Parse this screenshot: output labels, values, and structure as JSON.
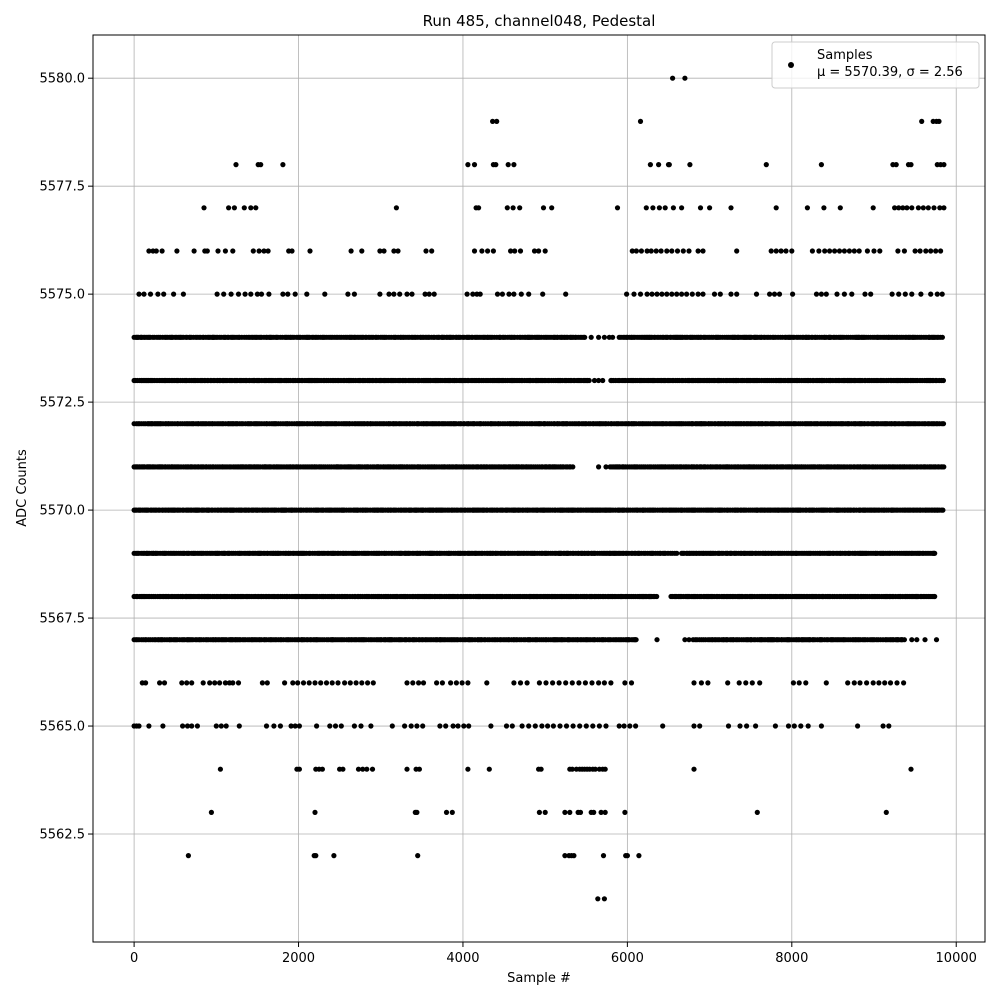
{
  "chart_data": {
    "type": "scatter",
    "title": "Run 485, channel048, Pedestal",
    "xlabel": "Sample #",
    "ylabel": "ADC Counts",
    "xlim": [
      -500,
      10350
    ],
    "ylim": [
      5560.0,
      5581.0
    ],
    "xticks": [
      0,
      2000,
      4000,
      6000,
      8000,
      10000
    ],
    "xtick_labels": [
      "0",
      "2000",
      "4000",
      "6000",
      "8000",
      "10000"
    ],
    "yticks": [
      5562.5,
      5565.0,
      5567.5,
      5570.0,
      5572.5,
      5575.0,
      5577.5,
      5580.0
    ],
    "ytick_labels": [
      "5562.5",
      "5565.0",
      "5567.5",
      "5570.0",
      "5572.5",
      "5575.0",
      "5577.5",
      "5580.0"
    ],
    "grid": true,
    "legend_position": "top-right",
    "series": [
      {
        "name": "Samples",
        "color": "#000000",
        "x_range": [
          0,
          9850
        ],
        "level_points": [
          {
            "level": 5561,
            "x": [
              5640,
              5720
            ]
          },
          {
            "level": 5562,
            "x": [
              660,
              2190,
              2210,
              2430,
              3450,
              5240,
              5290,
              5320,
              5350,
              5710,
              5980,
              6000,
              6140
            ]
          },
          {
            "level": 5563,
            "x": [
              940,
              2200,
              3420,
              3440,
              3800,
              3870,
              4930,
              5000,
              5240,
              5300,
              5400,
              5430,
              5560,
              5590,
              5680,
              5730,
              5970,
              7580,
              9150
            ]
          },
          {
            "level": 5564,
            "x": [
              1050,
              1980,
              2010,
              2210,
              2250,
              2290,
              2500,
              2540,
              2730,
              2780,
              2830,
              2900,
              3320,
              3430,
              3470,
              4060,
              4320,
              4920,
              4950,
              5300,
              5330,
              5380,
              5420,
              5450,
              5480,
              5510,
              5540,
              5580,
              5610,
              5660,
              5700,
              5730,
              6810,
              9450
            ]
          },
          {
            "level": 5565,
            "x": [
              0,
              30,
              60,
              180,
              350,
              590,
              650,
              700,
              770,
              1000,
              1060,
              1120,
              1280,
              1610,
              1700,
              1780,
              1910,
              1960,
              2010,
              2220,
              2380,
              2450,
              2520,
              2680,
              2760,
              2880,
              3140,
              3290,
              3370,
              3440,
              3510,
              3720,
              3790,
              3880,
              3940,
              4010,
              4070,
              4340,
              4530,
              4600,
              4720,
              4800,
              4880,
              4960,
              5030,
              5100,
              5180,
              5260,
              5340,
              5420,
              5500,
              5580,
              5660,
              5740,
              5900,
              5960,
              6030,
              6100,
              6430,
              6810,
              6880,
              7230,
              7370,
              7450,
              7560,
              7800,
              7960,
              8030,
              8110,
              8200,
              8360,
              8800,
              9110,
              9180
            ]
          },
          {
            "level": 5566,
            "x": [
              100,
              140,
              310,
              370,
              580,
              640,
              700,
              840,
              920,
              980,
              1040,
              1110,
              1160,
              1200,
              1270,
              1560,
              1620,
              1830,
              1930,
              1990,
              2060,
              2130,
              2200,
              2270,
              2340,
              2410,
              2480,
              2560,
              2630,
              2700,
              2770,
              2840,
              2910,
              3320,
              3390,
              3460,
              3520,
              3680,
              3750,
              3850,
              3920,
              3990,
              4060,
              4290,
              4620,
              4700,
              4780,
              4930,
              5010,
              5090,
              5170,
              5250,
              5330,
              5410,
              5490,
              5570,
              5650,
              5720,
              5800,
              5970,
              6050,
              6810,
              6900,
              6980,
              7220,
              7360,
              7440,
              7520,
              7610,
              8020,
              8090,
              8170,
              8420,
              8680,
              8760,
              8830,
              8910,
              8990,
              9060,
              9130,
              9200,
              9280,
              9360
            ]
          },
          {
            "level": 5567,
            "x_start": 0,
            "x_end": 6130,
            "extra": [
              6360,
              6700,
              6750
            ],
            "x_start2": 6800,
            "x_end2": 9380,
            "extra2": [
              9460,
              9520,
              9620,
              9760
            ]
          },
          {
            "level": 5568,
            "x_start": 0,
            "x_end": 6360,
            "x_start2": 6530,
            "x_end2": 9750
          },
          {
            "level": 5569,
            "x_start": 0,
            "x_end": 6620,
            "x_start2": 6660,
            "x_end2": 9750
          },
          {
            "level": 5570,
            "x_start": 0,
            "x_end": 9850
          },
          {
            "level": 5571,
            "x_start": 0,
            "x_end": 5340,
            "extra": [
              5650,
              5740
            ],
            "x_start2": 5790,
            "x_end2": 9850
          },
          {
            "level": 5572,
            "x_start": 0,
            "x_end": 9850
          },
          {
            "level": 5573,
            "x_start": 0,
            "x_end": 5540,
            "extra": [
              5600,
              5650,
              5700
            ],
            "x_start2": 5800,
            "x_end2": 9850
          },
          {
            "level": 5574,
            "x_start": 0,
            "x_end": 5490,
            "extra": [
              5560,
              5650,
              5720,
              5780,
              5820
            ],
            "x_start2": 5900,
            "x_end2": 9850
          },
          {
            "level": 5575,
            "x": [
              60,
              120,
              200,
              290,
              360,
              480,
              600,
              1010,
              1090,
              1180,
              1270,
              1350,
              1420,
              1500,
              1550,
              1640,
              1810,
              1870,
              1960,
              2100,
              2320,
              2600,
              2680,
              2990,
              3100,
              3160,
              3230,
              3320,
              3380,
              3540,
              3590,
              3650,
              4050,
              4120,
              4170,
              4210,
              4420,
              4480,
              4560,
              4620,
              4710,
              4800,
              4970,
              5250,
              5990,
              6080,
              6160,
              6240,
              6300,
              6360,
              6420,
              6480,
              6540,
              6600,
              6660,
              6720,
              6790,
              6860,
              6920,
              7060,
              7130,
              7260,
              7330,
              7570,
              7730,
              7790,
              7850,
              8010,
              8300,
              8360,
              8420,
              8550,
              8640,
              8730,
              8890,
              8960,
              9220,
              9300,
              9380,
              9460,
              9570,
              9690,
              9770,
              9830
            ]
          },
          {
            "level": 5576,
            "x": [
              180,
              230,
              270,
              340,
              520,
              730,
              860,
              890,
              1020,
              1110,
              1200,
              1450,
              1520,
              1580,
              1630,
              1880,
              1920,
              2140,
              2640,
              2770,
              2990,
              3040,
              3160,
              3210,
              3550,
              3620,
              4140,
              4230,
              4300,
              4370,
              4580,
              4630,
              4700,
              4870,
              4920,
              5000,
              6060,
              6110,
              6170,
              6240,
              6290,
              6350,
              6410,
              6480,
              6540,
              6610,
              6680,
              6750,
              6860,
              6920,
              7330,
              7750,
              7810,
              7870,
              7930,
              8000,
              8250,
              8330,
              8400,
              8460,
              8520,
              8580,
              8640,
              8700,
              8760,
              8820,
              8920,
              9000,
              9070,
              9290,
              9370,
              9500,
              9560,
              9630,
              9690,
              9750,
              9810
            ]
          },
          {
            "level": 5577,
            "x": [
              850,
              1150,
              1220,
              1340,
              1420,
              1480,
              3190,
              4160,
              4190,
              4540,
              4610,
              4690,
              4980,
              5080,
              5880,
              6230,
              6310,
              6390,
              6460,
              6560,
              6660,
              6890,
              7000,
              7260,
              7810,
              8190,
              8390,
              8590,
              8990,
              9250,
              9300,
              9350,
              9400,
              9460,
              9540,
              9600,
              9660,
              9730,
              9800,
              9850
            ]
          },
          {
            "level": 5578,
            "x": [
              1240,
              1510,
              1540,
              1810,
              4060,
              4140,
              4370,
              4400,
              4550,
              4620,
              6280,
              6380,
              6500,
              6510,
              6760,
              7690,
              8360,
              9230,
              9270,
              9420,
              9450,
              9770,
              9810,
              9850
            ]
          },
          {
            "level": 5579,
            "x": [
              4360,
              4410,
              6160,
              9580,
              9720,
              9760,
              9790
            ]
          },
          {
            "level": 5580,
            "x": [
              6550,
              6700
            ]
          }
        ]
      }
    ],
    "legend": {
      "label": "Samples",
      "stats": "μ = 5570.39, σ = 2.56"
    }
  }
}
